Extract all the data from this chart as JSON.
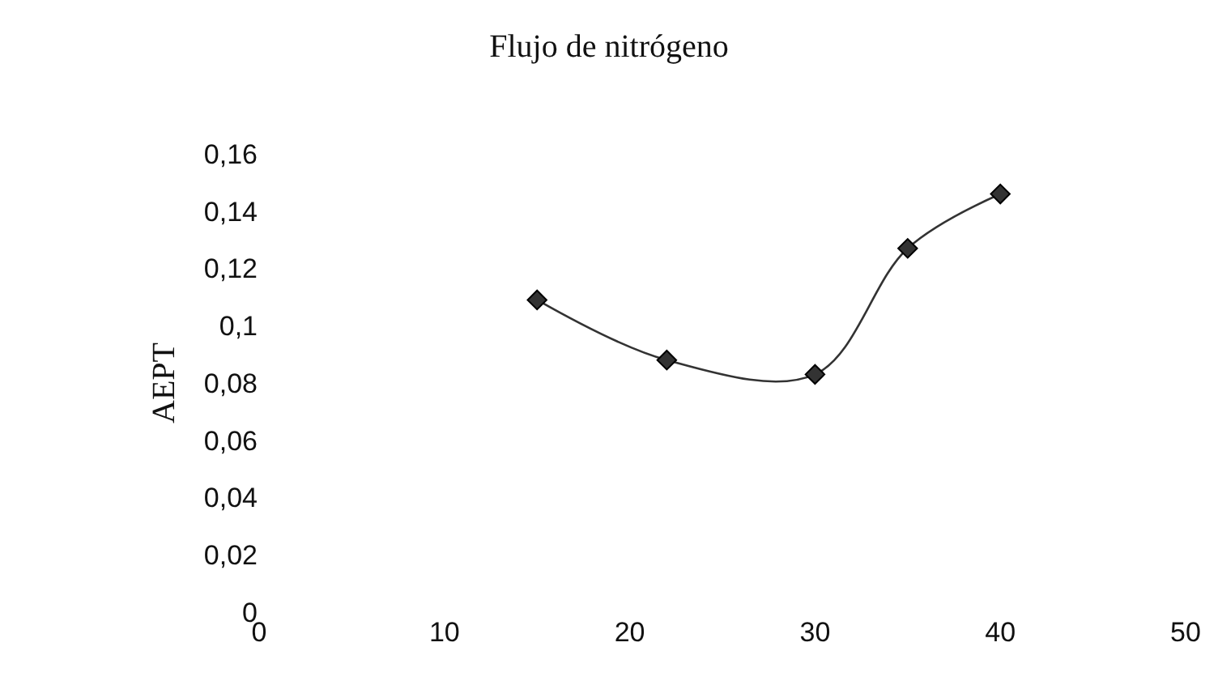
{
  "chart_data": {
    "type": "line",
    "title": "Flujo de nitrógeno",
    "ylabel": "AEPT",
    "x": [
      15,
      22,
      30,
      35,
      40
    ],
    "series": [
      {
        "color": "#333333",
        "values": [
          0.109,
          0.088,
          0.083,
          0.127,
          0.146
        ]
      }
    ],
    "xlim": [
      0,
      50
    ],
    "xticks": [
      0,
      10,
      20,
      30,
      40,
      50
    ],
    "ylim": [
      0,
      0.16
    ],
    "yticks": [
      {
        "value": 0,
        "label": "0"
      },
      {
        "value": 0.02,
        "label": "0,02"
      },
      {
        "value": 0.04,
        "label": "0,04"
      },
      {
        "value": 0.06,
        "label": "0,06"
      },
      {
        "value": 0.08,
        "label": "0,08"
      },
      {
        "value": 0.1,
        "label": "0,1"
      },
      {
        "value": 0.12,
        "label": "0,12"
      },
      {
        "value": 0.14,
        "label": "0,14"
      },
      {
        "value": 0.16,
        "label": "0,16"
      }
    ],
    "grid": false,
    "legend": false,
    "marker": "diamond",
    "line_style": "solid"
  }
}
